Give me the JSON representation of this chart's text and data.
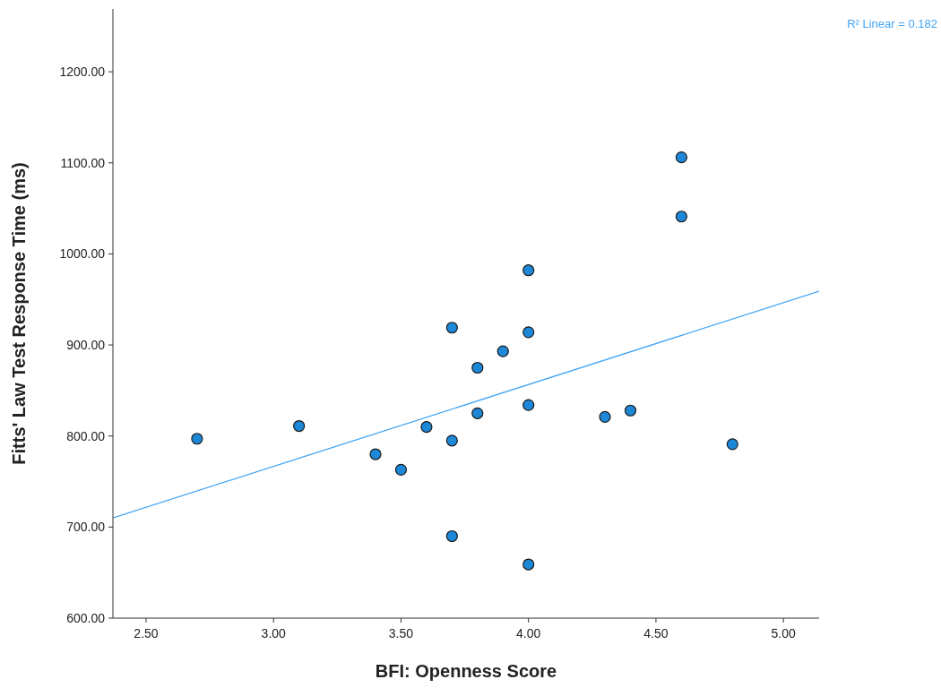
{
  "chart_data": {
    "type": "scatter",
    "xlabel": "BFI: Openness Score",
    "ylabel": "Fitts' Law Test Response Time (ms)",
    "annotations": [
      "R² Linear = 0.182"
    ],
    "xlim": [
      2.37,
      5.14
    ],
    "ylim": [
      600,
      1269
    ],
    "xticks": [
      {
        "value": 2.5,
        "label": "2.50"
      },
      {
        "value": 3,
        "label": "3.00"
      },
      {
        "value": 3.5,
        "label": "3.50"
      },
      {
        "value": 4,
        "label": "4.00"
      },
      {
        "value": 4.5,
        "label": "4.50"
      },
      {
        "value": 5,
        "label": "5.00"
      }
    ],
    "yticks": [
      {
        "value": 600,
        "label": "600.00"
      },
      {
        "value": 700,
        "label": "700.00"
      },
      {
        "value": 800,
        "label": "800.00"
      },
      {
        "value": 900,
        "label": "900.00"
      },
      {
        "value": 1000,
        "label": "1000.00"
      },
      {
        "value": 1100,
        "label": "1100.00"
      },
      {
        "value": 1200,
        "label": "1200.00"
      }
    ],
    "grid": false,
    "series": [
      {
        "marker": "circle",
        "color": "#1e88d8",
        "x": [
          2.7,
          3.1,
          3.4,
          3.5,
          3.6,
          3.7,
          3.7,
          3.7,
          3.8,
          3.8,
          3.9,
          4.0,
          4.0,
          4.0,
          4.0,
          4.3,
          4.4,
          4.6,
          4.6,
          4.8
        ],
        "values": [
          797,
          811,
          780,
          763,
          810,
          919,
          795,
          690,
          875,
          825,
          893,
          982,
          914,
          834,
          659,
          821,
          828,
          1106,
          1041,
          791
        ]
      },
      {
        "type": "line",
        "color": "#42a5f5",
        "x": [
          2.37,
          5.14
        ],
        "values": [
          710,
          959
        ]
      }
    ]
  }
}
